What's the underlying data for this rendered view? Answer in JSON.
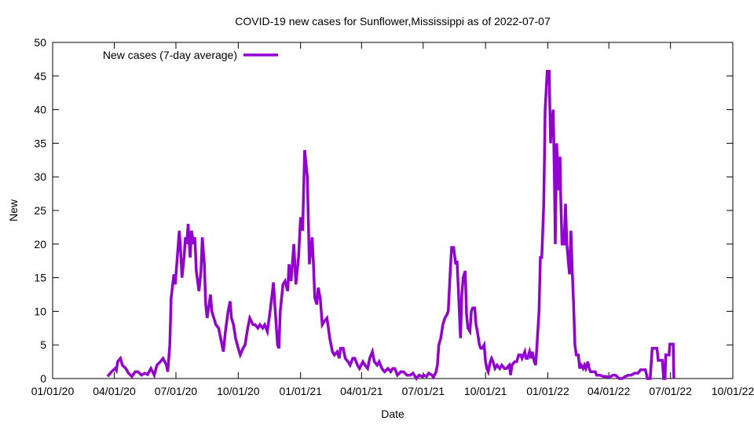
{
  "chart_data": {
    "type": "line",
    "title": "COVID-19 new cases for Sunflower,Mississippi as of 2022-07-07",
    "xlabel": "Date",
    "ylabel": "New",
    "x_units": "days since 2020-01-01",
    "xlim": [
      0,
      1004
    ],
    "ylim": [
      0,
      50
    ],
    "yticks": [
      0,
      5,
      10,
      15,
      20,
      25,
      30,
      35,
      40,
      45,
      50
    ],
    "xticks": [
      {
        "day": 0,
        "label": "01/01/20"
      },
      {
        "day": 91,
        "label": "04/01/20"
      },
      {
        "day": 182,
        "label": "07/01/20"
      },
      {
        "day": 274,
        "label": "10/01/20"
      },
      {
        "day": 366,
        "label": "01/01/21"
      },
      {
        "day": 456,
        "label": "04/01/21"
      },
      {
        "day": 547,
        "label": "07/01/21"
      },
      {
        "day": 639,
        "label": "10/01/21"
      },
      {
        "day": 731,
        "label": "01/01/22"
      },
      {
        "day": 821,
        "label": "04/01/22"
      },
      {
        "day": 912,
        "label": "07/01/22"
      },
      {
        "day": 1004,
        "label": "10/01/22"
      }
    ],
    "grid": false,
    "legend_position": "top-left",
    "series": [
      {
        "name": "New cases (7-day average)",
        "color": "#9400d3",
        "points": [
          [
            81,
            0.3
          ],
          [
            87,
            1
          ],
          [
            92,
            1.5
          ],
          [
            94,
            1.2
          ],
          [
            96,
            2.5
          ],
          [
            100,
            3
          ],
          [
            103,
            2
          ],
          [
            108,
            1.5
          ],
          [
            112,
            0.8
          ],
          [
            117,
            0.3
          ],
          [
            122,
            1
          ],
          [
            126,
            1
          ],
          [
            131,
            0.5
          ],
          [
            136,
            0.8
          ],
          [
            140,
            0.6
          ],
          [
            145,
            1.5
          ],
          [
            150,
            0.5
          ],
          [
            154,
            2
          ],
          [
            159,
            2.5
          ],
          [
            163,
            3
          ],
          [
            168,
            2
          ],
          [
            170,
            1
          ],
          [
            173,
            5
          ],
          [
            175,
            12
          ],
          [
            179,
            15.5
          ],
          [
            181,
            14
          ],
          [
            184,
            18
          ],
          [
            187,
            22
          ],
          [
            189,
            19
          ],
          [
            191,
            15
          ],
          [
            194,
            18
          ],
          [
            196,
            21
          ],
          [
            198,
            20
          ],
          [
            200,
            23
          ],
          [
            203,
            18
          ],
          [
            205,
            22
          ],
          [
            208,
            20
          ],
          [
            210,
            21
          ],
          [
            212,
            16
          ],
          [
            216,
            13
          ],
          [
            219,
            16
          ],
          [
            221,
            21
          ],
          [
            224,
            17
          ],
          [
            226,
            11
          ],
          [
            228,
            9
          ],
          [
            231,
            11
          ],
          [
            233,
            12.5
          ],
          [
            235,
            10
          ],
          [
            238,
            9
          ],
          [
            241,
            8
          ],
          [
            245,
            7.5
          ],
          [
            248,
            6
          ],
          [
            252,
            4
          ],
          [
            255,
            7
          ],
          [
            259,
            10
          ],
          [
            262,
            11.5
          ],
          [
            264,
            9
          ],
          [
            267,
            8
          ],
          [
            270,
            6
          ],
          [
            274,
            4.5
          ],
          [
            277,
            3.5
          ],
          [
            281,
            4.5
          ],
          [
            284,
            5
          ],
          [
            288,
            7.5
          ],
          [
            291,
            9
          ],
          [
            296,
            8
          ],
          [
            299,
            8
          ],
          [
            303,
            7.5
          ],
          [
            306,
            8
          ],
          [
            310,
            7.5
          ],
          [
            313,
            8
          ],
          [
            317,
            7
          ],
          [
            321,
            10
          ],
          [
            326,
            14.3
          ],
          [
            328,
            11
          ],
          [
            332,
            5
          ],
          [
            334,
            4.5
          ],
          [
            336,
            10
          ],
          [
            340,
            14
          ],
          [
            343,
            14.5
          ],
          [
            347,
            13
          ],
          [
            349,
            17
          ],
          [
            352,
            14.5
          ],
          [
            356,
            20
          ],
          [
            359,
            14
          ],
          [
            363,
            18
          ],
          [
            366,
            24
          ],
          [
            369,
            22
          ],
          [
            372,
            34
          ],
          [
            376,
            30
          ],
          [
            379,
            17
          ],
          [
            383,
            21
          ],
          [
            385,
            17
          ],
          [
            387,
            12
          ],
          [
            390,
            11
          ],
          [
            392,
            13.5
          ],
          [
            395,
            12
          ],
          [
            398,
            8
          ],
          [
            401,
            8.5
          ],
          [
            405,
            9
          ],
          [
            407,
            7.5
          ],
          [
            409,
            6
          ],
          [
            413,
            4
          ],
          [
            416,
            3.5
          ],
          [
            420,
            4
          ],
          [
            423,
            3
          ],
          [
            425,
            4.5
          ],
          [
            429,
            4.5
          ],
          [
            432,
            3
          ],
          [
            436,
            2.5
          ],
          [
            439,
            2
          ],
          [
            443,
            3
          ],
          [
            446,
            3
          ],
          [
            450,
            2
          ],
          [
            453,
            1.5
          ],
          [
            458,
            2.5
          ],
          [
            461,
            2
          ],
          [
            465,
            1.5
          ],
          [
            468,
            3
          ],
          [
            472,
            4
          ],
          [
            475,
            2.5
          ],
          [
            479,
            2
          ],
          [
            482,
            2.5
          ],
          [
            486,
            1.5
          ],
          [
            490,
            1
          ],
          [
            495,
            1.5
          ],
          [
            499,
            1
          ],
          [
            502,
            1.5
          ],
          [
            505,
            1.5
          ],
          [
            509,
            0.5
          ],
          [
            514,
            1
          ],
          [
            518,
            1
          ],
          [
            523,
            0.5
          ],
          [
            528,
            0.5
          ],
          [
            532,
            0.8
          ],
          [
            537,
            0
          ],
          [
            541,
            0.5
          ],
          [
            545,
            0.3
          ],
          [
            548,
            0.5
          ],
          [
            552,
            0.3
          ],
          [
            555,
            0.8
          ],
          [
            560,
            0.5
          ],
          [
            562,
            0.2
          ],
          [
            566,
            1
          ],
          [
            568,
            2
          ],
          [
            570,
            5
          ],
          [
            573,
            6
          ],
          [
            576,
            8
          ],
          [
            579,
            9
          ],
          [
            582,
            9.5
          ],
          [
            584,
            10
          ],
          [
            587,
            16
          ],
          [
            589,
            19.5
          ],
          [
            592,
            19.5
          ],
          [
            595,
            17
          ],
          [
            597,
            17.5
          ],
          [
            599,
            13
          ],
          [
            602,
            6
          ],
          [
            604,
            12.5
          ],
          [
            606,
            15
          ],
          [
            609,
            16
          ],
          [
            611,
            9.5
          ],
          [
            613,
            7.5
          ],
          [
            616,
            7
          ],
          [
            618,
            10
          ],
          [
            620,
            10.5
          ],
          [
            623,
            10.5
          ],
          [
            625,
            8
          ],
          [
            627,
            7
          ],
          [
            630,
            5
          ],
          [
            632,
            4.5
          ],
          [
            634,
            4.5
          ],
          [
            637,
            5
          ],
          [
            639,
            2.5
          ],
          [
            641,
            1.5
          ],
          [
            643,
            1
          ],
          [
            646,
            2.5
          ],
          [
            648,
            3
          ],
          [
            650,
            2.5
          ],
          [
            653,
            1.5
          ],
          [
            656,
            2
          ],
          [
            660,
            1.5
          ],
          [
            663,
            2
          ],
          [
            667,
            1.5
          ],
          [
            670,
            1.5
          ],
          [
            674,
            2
          ],
          [
            676,
            0.5
          ],
          [
            678,
            2
          ],
          [
            682,
            2.5
          ],
          [
            685,
            2.5
          ],
          [
            688,
            3.5
          ],
          [
            691,
            3.5
          ],
          [
            693,
            3
          ],
          [
            697,
            4
          ],
          [
            699,
            3
          ],
          [
            701,
            3
          ],
          [
            704,
            4
          ],
          [
            706,
            3
          ],
          [
            708,
            4
          ],
          [
            711,
            2.5
          ],
          [
            713,
            2
          ],
          [
            715,
            5
          ],
          [
            718,
            10
          ],
          [
            720,
            18
          ],
          [
            722,
            18
          ],
          [
            725,
            26
          ],
          [
            727,
            40
          ],
          [
            730,
            45.7
          ],
          [
            733,
            45.7
          ],
          [
            735,
            35
          ],
          [
            736,
            37
          ],
          [
            739,
            40
          ],
          [
            741,
            28
          ],
          [
            742,
            20
          ],
          [
            744,
            35
          ],
          [
            747,
            28
          ],
          [
            749,
            33
          ],
          [
            750,
            27
          ],
          [
            752,
            20
          ],
          [
            755,
            20
          ],
          [
            757,
            26
          ],
          [
            759,
            20
          ],
          [
            762,
            16.5
          ],
          [
            763,
            15.5
          ],
          [
            765,
            22
          ],
          [
            767,
            16
          ],
          [
            769,
            11
          ],
          [
            771,
            5
          ],
          [
            773,
            3.5
          ],
          [
            776,
            3.5
          ],
          [
            778,
            1.5
          ],
          [
            780,
            2
          ],
          [
            783,
            1.5
          ],
          [
            785,
            2
          ],
          [
            787,
            1.5
          ],
          [
            790,
            2.5
          ],
          [
            792,
            1.5
          ],
          [
            794,
            1
          ],
          [
            798,
            1
          ],
          [
            801,
            1
          ],
          [
            803,
            0.5
          ],
          [
            808,
            0.5
          ],
          [
            813,
            0.3
          ],
          [
            817,
            0.3
          ],
          [
            822,
            0.2
          ],
          [
            827,
            0.5
          ],
          [
            831,
            0.5
          ],
          [
            836,
            0
          ],
          [
            841,
            0
          ],
          [
            845,
            0.3
          ],
          [
            850,
            0.5
          ],
          [
            854,
            0.5
          ],
          [
            859,
            0.8
          ],
          [
            864,
            0.8
          ],
          [
            868,
            1.3
          ],
          [
            875,
            1.3
          ],
          [
            878,
            0
          ],
          [
            882,
            0
          ],
          [
            885,
            4.5
          ],
          [
            892,
            4.5
          ],
          [
            894,
            2.7
          ],
          [
            900,
            2.7
          ],
          [
            902,
            0
          ],
          [
            904,
            0
          ],
          [
            905,
            3.5
          ],
          [
            910,
            3.5
          ],
          [
            911,
            5.1
          ],
          [
            916,
            5.1
          ],
          [
            917,
            0
          ]
        ]
      }
    ]
  }
}
